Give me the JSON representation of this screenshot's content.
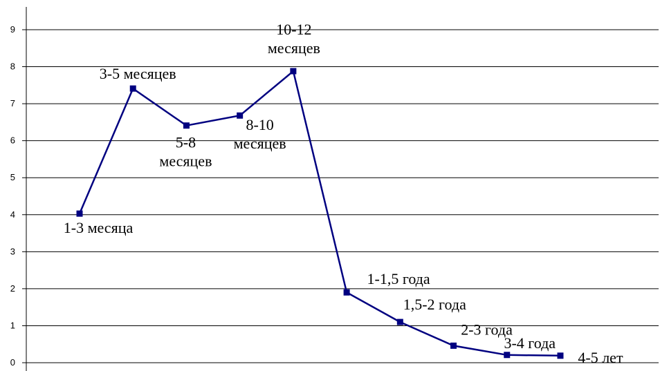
{
  "chart_data": {
    "type": "line",
    "title": "",
    "xlabel": "",
    "ylabel": "",
    "ylim": [
      0,
      9
    ],
    "yticks": [
      "0",
      "1",
      "2",
      "3",
      "4",
      "5",
      "6",
      "7",
      "8",
      "9"
    ],
    "grid": true,
    "legend": "none",
    "series_color": "#000080",
    "categories": [
      "1-3 месяца",
      "3-5 месяцев",
      "5-8 месяцев",
      "8-10 месяцев",
      "10-12 месяцев",
      "1-1,5 года",
      "1,5-2 года",
      "2-3 года",
      "3-4 года",
      "4-5 лет"
    ],
    "point_labels": [
      [
        "1-3 месяца"
      ],
      [
        "3-5 месяцев"
      ],
      [
        "5-8",
        "месяцев"
      ],
      [
        "8-10",
        "месяцев"
      ],
      [
        "10-12",
        "месяцев"
      ],
      [
        "1-1,5 года"
      ],
      [
        "1,5-2 года"
      ],
      [
        "2-3 года"
      ],
      [
        "3-4 года"
      ],
      [
        "4-5 лет"
      ]
    ],
    "values": [
      4.03,
      7.41,
      6.41,
      6.68,
      7.88,
      1.9,
      1.1,
      0.46,
      0.21,
      0.19
    ]
  }
}
